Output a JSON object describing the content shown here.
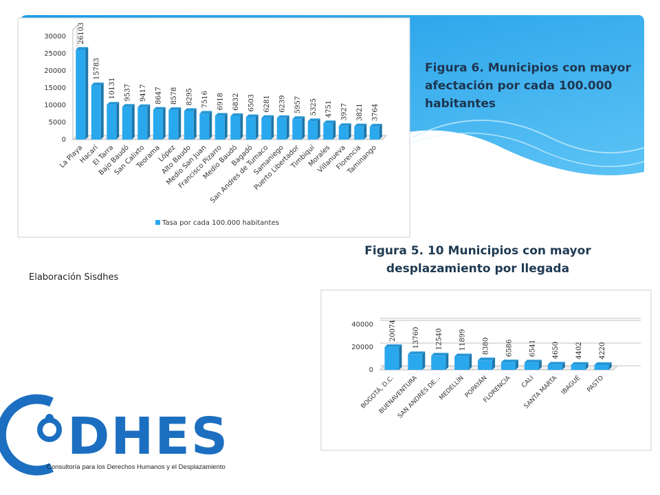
{
  "chart_data": [
    {
      "type": "bar",
      "title": "Figura 6. Municipios con mayor afectación por cada 100.000 habitantes",
      "categories": [
        "La Playa",
        "Hacarí",
        "El Tarra",
        "Bajo Baudó",
        "San Calixto",
        "Teorama",
        "López",
        "Alto Baudo",
        "Medio San Juan",
        "Francisco Pizarro",
        "Medio Baudó",
        "Bagadó",
        "San Andres de Tumaco",
        "Samaniego",
        "Puerto Libertador",
        "Timbiquí",
        "Morales",
        "Villanueva",
        "Florencia",
        "Taminango"
      ],
      "series": [
        {
          "name": "Tasa por cada 100.000 habitantes",
          "color": "#2aa8ee",
          "values": [
            26103,
            15783,
            10131,
            9537,
            9417,
            8647,
            8578,
            8295,
            7516,
            6918,
            6832,
            6503,
            6281,
            6239,
            5957,
            5325,
            4751,
            3927,
            3821,
            3764
          ]
        }
      ],
      "ylim": [
        0,
        30000
      ],
      "yticks": [
        0,
        5000,
        10000,
        15000,
        20000,
        25000,
        30000
      ],
      "grid": false,
      "legend": "bottom"
    },
    {
      "type": "bar",
      "title": "Figura 5. 10 Municipios con mayor desplazamiento por llegada",
      "categories": [
        "BOGOTÁ, D.C.",
        "BUENAVENTURA",
        "SAN ANDRÉS DE...",
        "MEDELLÍN",
        "POPAYÁN",
        "FLORENCIA",
        "CALI",
        "SANTA MARTA",
        "IBAGUÉ",
        "PASTO"
      ],
      "values": [
        20074,
        13760,
        12540,
        11899,
        8380,
        6586,
        6541,
        4650,
        4402,
        4220
      ],
      "color": "#2aa8ee",
      "ylim": [
        0,
        40000
      ],
      "yticks": [
        0,
        20000,
        40000
      ],
      "grid": true
    }
  ],
  "note": "Elaboración Sisdhes",
  "logo": {
    "name": "DHES",
    "tagline": "Consultoría para los Derechos Humanos y el Desplazamiento"
  }
}
